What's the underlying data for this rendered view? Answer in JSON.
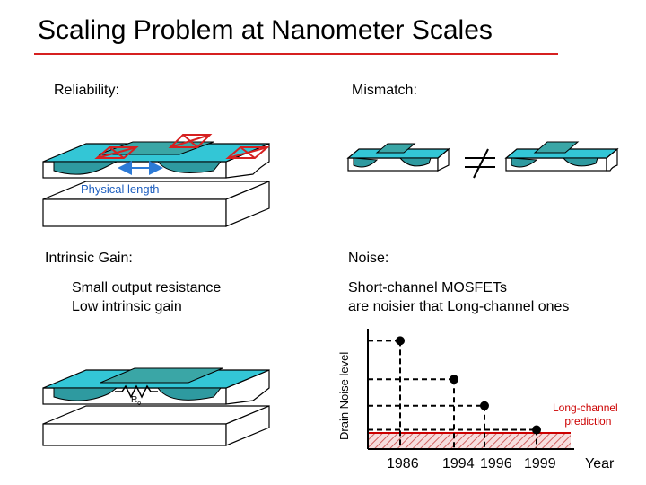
{
  "title": "Scaling Problem at Nanometer Scales",
  "reliability": {
    "heading": "Reliability:",
    "dimension_label": "Physical length"
  },
  "mismatch": {
    "heading": "Mismatch:"
  },
  "intrinsic_gain": {
    "heading": "Intrinsic Gain:",
    "line1": "Small output resistance",
    "line2": "Low intrinsic gain",
    "resistor_label": "R",
    "resistor_subscript": "o"
  },
  "noise": {
    "heading": "Noise:",
    "line1": "Short-channel MOSFETs",
    "line2": "are noisier that Long-channel ones",
    "ylabel": "Drain Noise level",
    "xlabel": "Year",
    "prediction_line1": "Long-channel",
    "prediction_line2": "prediction"
  },
  "colors": {
    "accent_red": "#d62020",
    "device_cyan": "#33c6d6",
    "device_teal": "#2e9aa0",
    "arrow_blue": "#2c7ad6",
    "prediction_red": "#cc0000"
  },
  "chart_data": {
    "type": "scatter",
    "title": "",
    "xlabel": "Year",
    "ylabel": "Drain Noise level",
    "x_tick_labels": [
      "1986",
      "1994",
      "1996",
      "1999"
    ],
    "points": [
      {
        "x": 1986,
        "y": 0.9
      },
      {
        "x": 1994,
        "y": 0.58
      },
      {
        "x": 1996,
        "y": 0.36
      },
      {
        "x": 1999,
        "y": 0.16
      }
    ],
    "reference_line": {
      "name": "Long-channel prediction",
      "y": 0.05
    },
    "ylim": [
      0,
      1
    ],
    "grid": false
  }
}
